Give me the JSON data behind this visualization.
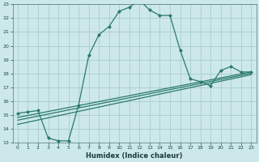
{
  "xlabel": "Humidex (Indice chaleur)",
  "bg_color": "#cce8ea",
  "grid_color": "#aacccc",
  "line_color": "#2a7a6a",
  "xlim": [
    -0.5,
    23.5
  ],
  "ylim": [
    13,
    23
  ],
  "yticks": [
    13,
    14,
    15,
    16,
    17,
    18,
    19,
    20,
    21,
    22,
    23
  ],
  "xticks": [
    0,
    1,
    2,
    3,
    4,
    5,
    6,
    7,
    8,
    9,
    10,
    11,
    12,
    13,
    14,
    15,
    16,
    17,
    18,
    19,
    20,
    21,
    22,
    23
  ],
  "line1_x": [
    0,
    1,
    2,
    3,
    4,
    5,
    6,
    7,
    8,
    9,
    10,
    11,
    12,
    13,
    14,
    15,
    16,
    17,
    18,
    19,
    20,
    21,
    22,
    23
  ],
  "line1_y": [
    15.1,
    15.2,
    15.3,
    13.3,
    13.1,
    13.1,
    15.7,
    19.3,
    20.8,
    21.4,
    22.5,
    22.8,
    23.3,
    22.6,
    22.2,
    22.2,
    19.7,
    17.6,
    17.4,
    17.1,
    18.2,
    18.5,
    18.1,
    18.1
  ],
  "line2_x": [
    0,
    23
  ],
  "line2_y": [
    14.8,
    18.1
  ],
  "line3_x": [
    0,
    23
  ],
  "line3_y": [
    14.6,
    18.0
  ],
  "line4_x": [
    0,
    23
  ],
  "line4_y": [
    14.3,
    17.9
  ]
}
